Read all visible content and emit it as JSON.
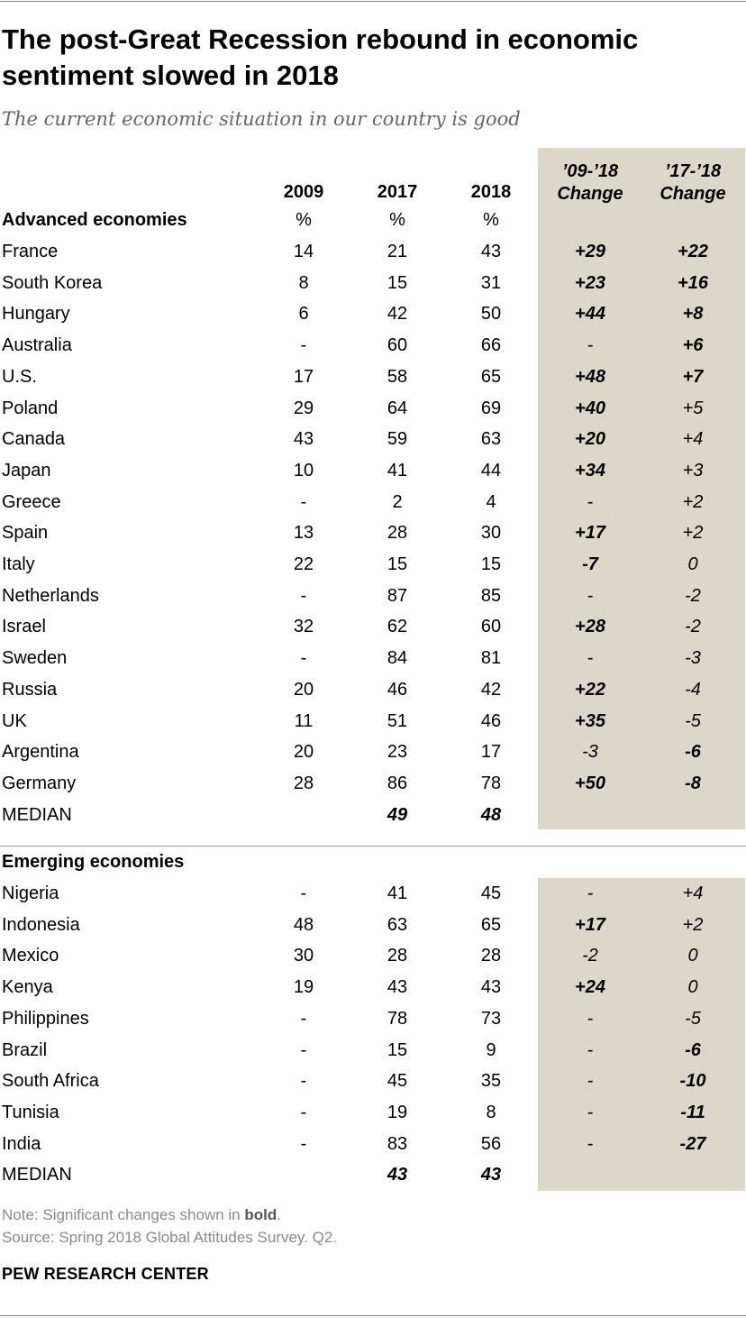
{
  "title": "The post-Great Recession rebound in economic sentiment slowed in 2018",
  "subtitle": "The current economic situation in our country is good",
  "headers": {
    "y2009": "2009",
    "y2017": "2017",
    "y2018": "2018",
    "chg1_line1": "’09-’18",
    "chg1_line2": "Change",
    "chg2_line1": "’17-’18",
    "chg2_line2": "Change",
    "pct": "%"
  },
  "colors": {
    "shade": "#dcd8c9",
    "note": "#8a8a8a"
  },
  "chart_data": {
    "type": "table",
    "title": "The post-Great Recession rebound in economic sentiment slowed in 2018",
    "subtitle": "The current economic situation in our country is good",
    "columns": [
      "2009",
      "2017",
      "2018",
      "’09-’18 Change",
      "’17-’18 Change"
    ],
    "sections": [
      {
        "name": "Advanced economies",
        "rows": [
          {
            "country": "France",
            "y2009": "14",
            "y2017": "21",
            "y2018": "43",
            "chg0918": "+29",
            "chg0918_bold": true,
            "chg1718": "+22",
            "chg1718_bold": true
          },
          {
            "country": "South Korea",
            "y2009": "8",
            "y2017": "15",
            "y2018": "31",
            "chg0918": "+23",
            "chg0918_bold": true,
            "chg1718": "+16",
            "chg1718_bold": true
          },
          {
            "country": "Hungary",
            "y2009": "6",
            "y2017": "42",
            "y2018": "50",
            "chg0918": "+44",
            "chg0918_bold": true,
            "chg1718": "+8",
            "chg1718_bold": true
          },
          {
            "country": "Australia",
            "y2009": "-",
            "y2017": "60",
            "y2018": "66",
            "chg0918": "-",
            "chg0918_bold": false,
            "chg1718": "+6",
            "chg1718_bold": true
          },
          {
            "country": "U.S.",
            "y2009": "17",
            "y2017": "58",
            "y2018": "65",
            "chg0918": "+48",
            "chg0918_bold": true,
            "chg1718": "+7",
            "chg1718_bold": true
          },
          {
            "country": "Poland",
            "y2009": "29",
            "y2017": "64",
            "y2018": "69",
            "chg0918": "+40",
            "chg0918_bold": true,
            "chg1718": "+5",
            "chg1718_bold": false
          },
          {
            "country": "Canada",
            "y2009": "43",
            "y2017": "59",
            "y2018": "63",
            "chg0918": "+20",
            "chg0918_bold": true,
            "chg1718": "+4",
            "chg1718_bold": false
          },
          {
            "country": "Japan",
            "y2009": "10",
            "y2017": "41",
            "y2018": "44",
            "chg0918": "+34",
            "chg0918_bold": true,
            "chg1718": "+3",
            "chg1718_bold": false
          },
          {
            "country": "Greece",
            "y2009": "-",
            "y2017": "2",
            "y2018": "4",
            "chg0918": "-",
            "chg0918_bold": false,
            "chg1718": "+2",
            "chg1718_bold": false
          },
          {
            "country": "Spain",
            "y2009": "13",
            "y2017": "28",
            "y2018": "30",
            "chg0918": "+17",
            "chg0918_bold": true,
            "chg1718": "+2",
            "chg1718_bold": false
          },
          {
            "country": "Italy",
            "y2009": "22",
            "y2017": "15",
            "y2018": "15",
            "chg0918": "-7",
            "chg0918_bold": true,
            "chg1718": "0",
            "chg1718_bold": false
          },
          {
            "country": "Netherlands",
            "y2009": "-",
            "y2017": "87",
            "y2018": "85",
            "chg0918": "-",
            "chg0918_bold": false,
            "chg1718": "-2",
            "chg1718_bold": false
          },
          {
            "country": "Israel",
            "y2009": "32",
            "y2017": "62",
            "y2018": "60",
            "chg0918": "+28",
            "chg0918_bold": true,
            "chg1718": "-2",
            "chg1718_bold": false
          },
          {
            "country": "Sweden",
            "y2009": "-",
            "y2017": "84",
            "y2018": "81",
            "chg0918": "-",
            "chg0918_bold": false,
            "chg1718": "-3",
            "chg1718_bold": false
          },
          {
            "country": "Russia",
            "y2009": "20",
            "y2017": "46",
            "y2018": "42",
            "chg0918": "+22",
            "chg0918_bold": true,
            "chg1718": "-4",
            "chg1718_bold": false
          },
          {
            "country": "UK",
            "y2009": "11",
            "y2017": "51",
            "y2018": "46",
            "chg0918": "+35",
            "chg0918_bold": true,
            "chg1718": "-5",
            "chg1718_bold": false
          },
          {
            "country": "Argentina",
            "y2009": "20",
            "y2017": "23",
            "y2018": "17",
            "chg0918": "-3",
            "chg0918_bold": false,
            "chg1718": "-6",
            "chg1718_bold": true
          },
          {
            "country": "Germany",
            "y2009": "28",
            "y2017": "86",
            "y2018": "78",
            "chg0918": "+50",
            "chg0918_bold": true,
            "chg1718": "-8",
            "chg1718_bold": true
          }
        ],
        "median": {
          "label": "MEDIAN",
          "y2017": "49",
          "y2018": "48"
        }
      },
      {
        "name": "Emerging economies",
        "rows": [
          {
            "country": "Nigeria",
            "y2009": "-",
            "y2017": "41",
            "y2018": "45",
            "chg0918": "-",
            "chg0918_bold": false,
            "chg1718": "+4",
            "chg1718_bold": false
          },
          {
            "country": "Indonesia",
            "y2009": "48",
            "y2017": "63",
            "y2018": "65",
            "chg0918": "+17",
            "chg0918_bold": true,
            "chg1718": "+2",
            "chg1718_bold": false
          },
          {
            "country": "Mexico",
            "y2009": "30",
            "y2017": "28",
            "y2018": "28",
            "chg0918": "-2",
            "chg0918_bold": false,
            "chg1718": "0",
            "chg1718_bold": false
          },
          {
            "country": "Kenya",
            "y2009": "19",
            "y2017": "43",
            "y2018": "43",
            "chg0918": "+24",
            "chg0918_bold": true,
            "chg1718": "0",
            "chg1718_bold": false
          },
          {
            "country": "Philippines",
            "y2009": "-",
            "y2017": "78",
            "y2018": "73",
            "chg0918": "-",
            "chg0918_bold": false,
            "chg1718": "-5",
            "chg1718_bold": false
          },
          {
            "country": "Brazil",
            "y2009": "-",
            "y2017": "15",
            "y2018": "9",
            "chg0918": "-",
            "chg0918_bold": false,
            "chg1718": "-6",
            "chg1718_bold": true
          },
          {
            "country": "South Africa",
            "y2009": "-",
            "y2017": "45",
            "y2018": "35",
            "chg0918": "-",
            "chg0918_bold": false,
            "chg1718": "-10",
            "chg1718_bold": true
          },
          {
            "country": "Tunisia",
            "y2009": "-",
            "y2017": "19",
            "y2018": "8",
            "chg0918": "-",
            "chg0918_bold": false,
            "chg1718": "-11",
            "chg1718_bold": true
          },
          {
            "country": "India",
            "y2009": "-",
            "y2017": "83",
            "y2018": "56",
            "chg0918": "-",
            "chg0918_bold": false,
            "chg1718": "-27",
            "chg1718_bold": true
          }
        ],
        "median": {
          "label": "MEDIAN",
          "y2017": "43",
          "y2018": "43"
        }
      }
    ]
  },
  "notes": {
    "note_prefix": "Note: Significant changes shown in ",
    "note_bold": "bold",
    "note_suffix": ".",
    "source": "Source: Spring 2018 Global Attitudes Survey. Q2."
  },
  "brand": "PEW RESEARCH CENTER"
}
